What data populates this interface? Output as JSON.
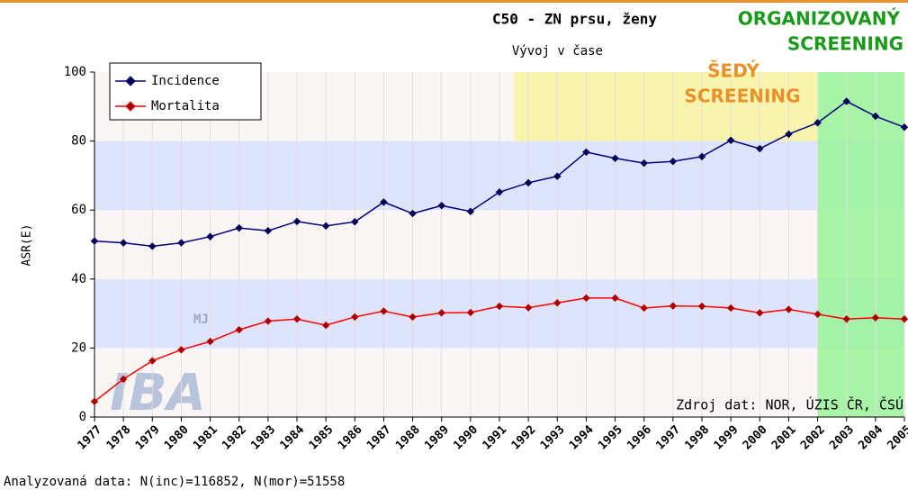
{
  "chart_data": {
    "type": "line",
    "title": "C50 - ZN prsu, ženy",
    "subtitle": "Vývoj v čase",
    "y_label": "ASR(E)",
    "source_note": "Zdroj dat: NOR, ÚZIS ČR, ČSÚ",
    "footer": "Analyzovaná data: N(inc)=116852, N(mor)=51558",
    "logo": [
      "MJ",
      "IBA"
    ],
    "x": [
      1977,
      1978,
      1979,
      1980,
      1981,
      1982,
      1983,
      1984,
      1985,
      1986,
      1987,
      1988,
      1989,
      1990,
      1991,
      1992,
      1993,
      1994,
      1995,
      1996,
      1997,
      1998,
      1999,
      2000,
      2001,
      2002,
      2003,
      2004,
      2005
    ],
    "xlim": [
      1977,
      2005
    ],
    "xticks": [
      1977,
      1978,
      1979,
      1980,
      1981,
      1982,
      1983,
      1984,
      1985,
      1986,
      1987,
      1988,
      1989,
      1990,
      1991,
      1992,
      1993,
      1994,
      1995,
      1996,
      1997,
      1998,
      1999,
      2000,
      2001,
      2002,
      2003,
      2004,
      2005
    ],
    "ylim": [
      0,
      100
    ],
    "yticks": [
      0,
      20,
      40,
      60,
      80,
      100
    ],
    "grid": true,
    "bands": {
      "color": "#dde4fb",
      "ranges": [
        [
          20,
          40
        ],
        [
          60,
          80
        ]
      ]
    },
    "regions": [
      {
        "label": [
          "ŠEDÝ",
          "SCREENING"
        ],
        "color": "#f7f3a0",
        "label_color": "#e8912a",
        "x": [
          1991.5,
          2002
        ],
        "y": [
          80,
          100
        ]
      },
      {
        "label": [
          "ORGANIZOVANÝ",
          "SCREENING"
        ],
        "color": "#9af59a",
        "label_color": "#1a9a1a",
        "x": [
          2002,
          2005
        ],
        "y": [
          0,
          100
        ]
      }
    ],
    "legend": "top-left",
    "series": [
      {
        "name": "Incidence",
        "color": "#000080",
        "values": [
          51,
          50.5,
          49.5,
          50.5,
          52.3,
          54.8,
          54,
          56.7,
          55.4,
          56.6,
          62.3,
          59,
          61.3,
          59.6,
          65.2,
          67.9,
          69.8,
          76.8,
          75,
          73.6,
          74.1,
          75.5,
          80.2,
          77.8,
          82,
          85.3,
          91.5,
          87.2,
          84
        ]
      },
      {
        "name": "Mortalita",
        "color": "#ff0000",
        "values": [
          4.5,
          11,
          16.3,
          19.5,
          21.9,
          25.3,
          27.8,
          28.4,
          26.6,
          29,
          30.7,
          29,
          30.2,
          30.3,
          32.1,
          31.7,
          33.1,
          34.5,
          34.5,
          31.6,
          32.2,
          32.1,
          31.6,
          30.2,
          31.2,
          29.8,
          28.4,
          28.8,
          28.4
        ]
      }
    ]
  }
}
